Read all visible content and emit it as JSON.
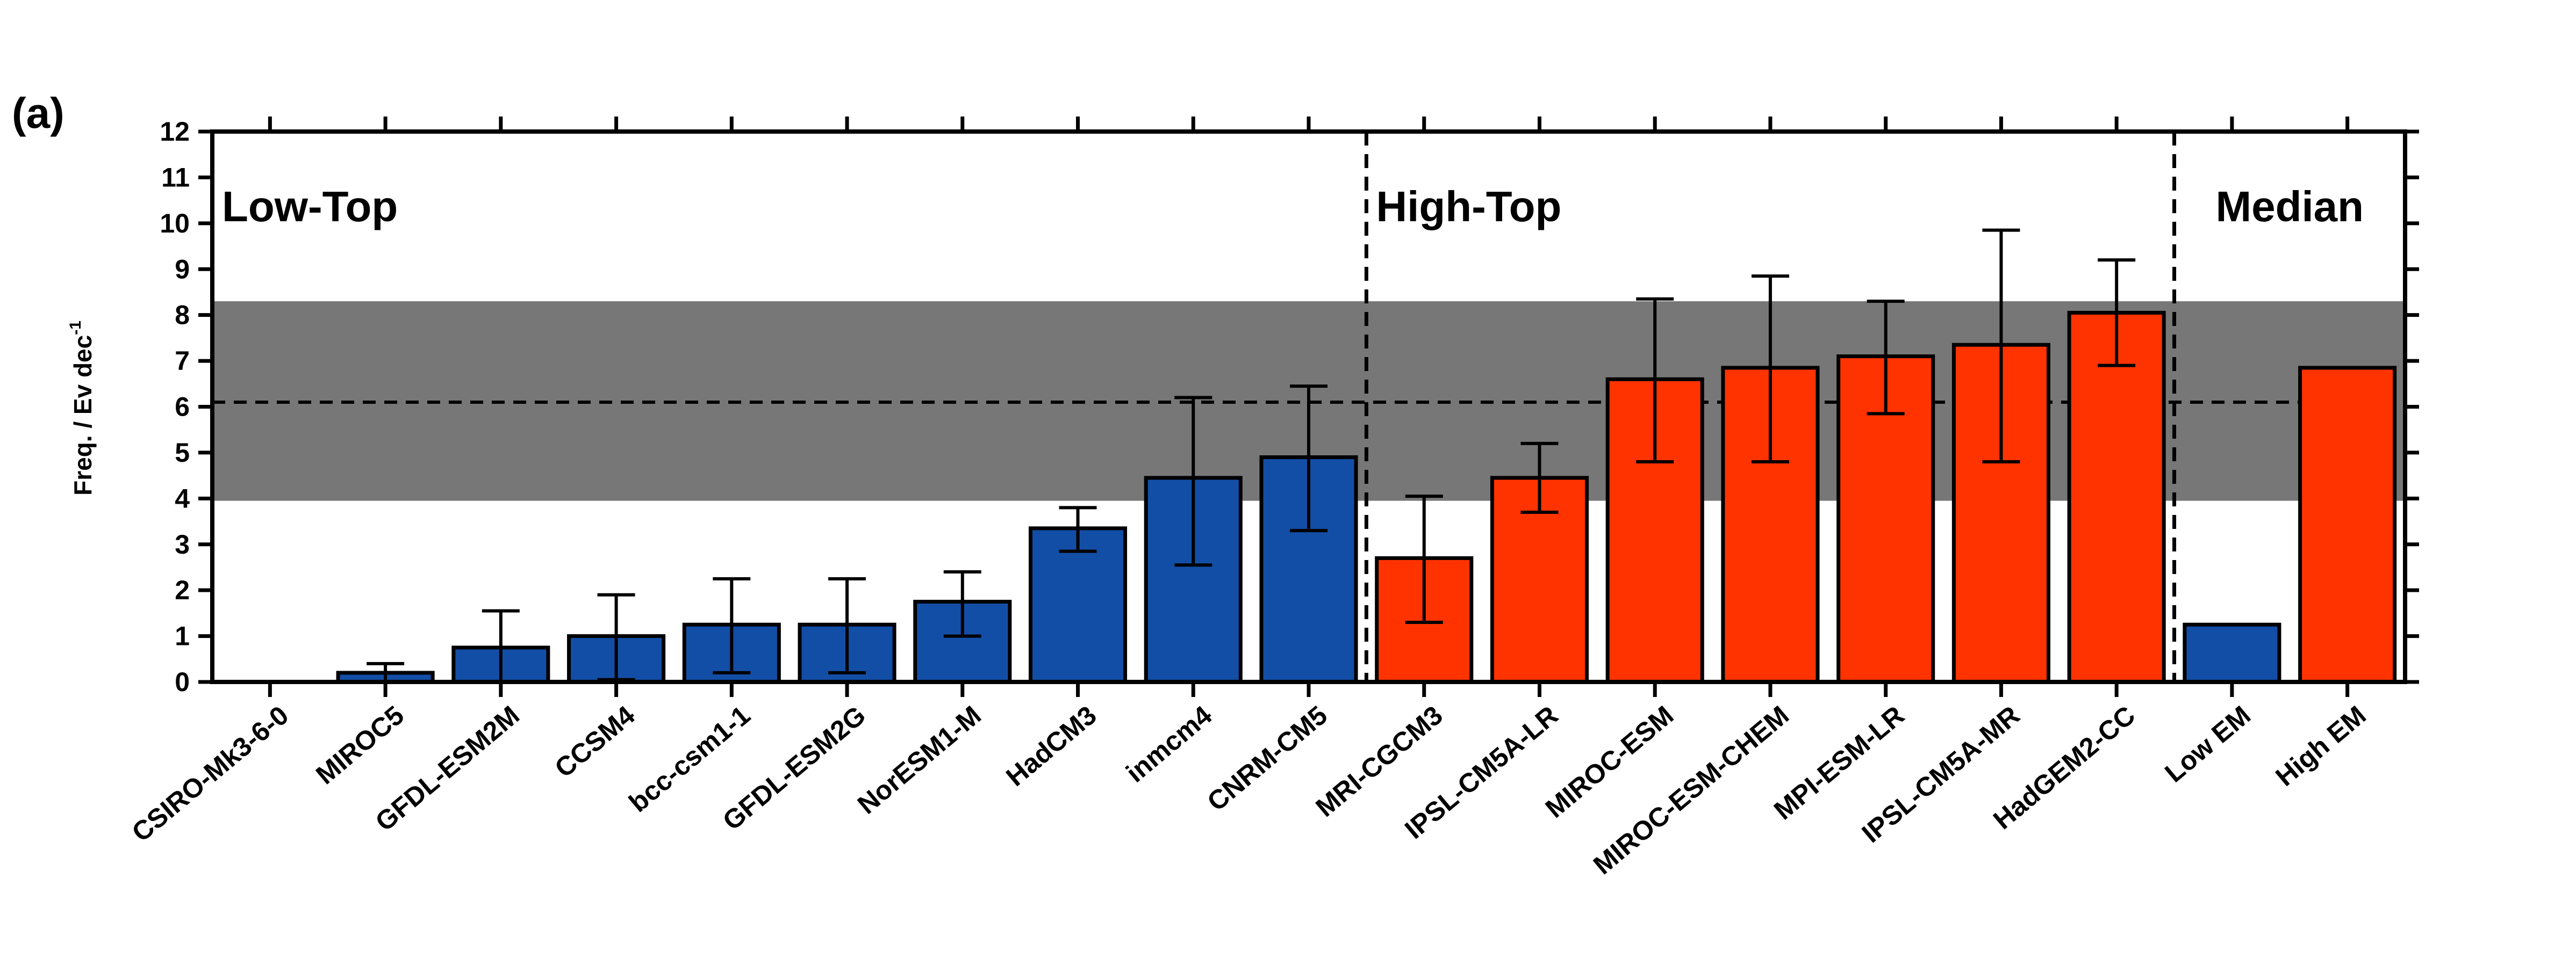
{
  "chart_data": {
    "type": "bar",
    "panel_label": "(a)",
    "ylabel": "Freq. / Ev dec",
    "ylabel_superscript": "-1",
    "ylim": [
      0,
      12
    ],
    "yticks": [
      0,
      1,
      2,
      3,
      4,
      5,
      6,
      7,
      8,
      9,
      10,
      11,
      12
    ],
    "reference": {
      "mean": 6.1,
      "band": [
        3.95,
        8.3
      ],
      "band_color": "#777777"
    },
    "groups": [
      {
        "label": "Low-Top",
        "start": 0
      },
      {
        "label": "High-Top",
        "start": 10
      },
      {
        "label": "Median",
        "start": 17
      }
    ],
    "colors": {
      "low": "#134ea6",
      "high": "#ff3300"
    },
    "categories": [
      "CSIRO-Mk3-6-0",
      "MIROC5",
      "GFDL-ESM2M",
      "CCSM4",
      "bcc-csm1-1",
      "GFDL-ESM2G",
      "NorESM1-M",
      "HadCM3",
      "inmcm4",
      "CNRM-CM5",
      "MRI-CGCM3",
      "IPSL-CM5A-LR",
      "MIROC-ESM",
      "MIROC-ESM-CHEM",
      "MPI-ESM-LR",
      "IPSL-CM5A-MR",
      "HadGEM2-CC",
      "Low EM",
      "High EM"
    ],
    "values": [
      0,
      0.2,
      0.75,
      1.0,
      1.25,
      1.25,
      1.75,
      3.35,
      4.45,
      4.9,
      2.7,
      4.45,
      6.6,
      6.85,
      7.1,
      7.35,
      8.05,
      1.25,
      6.85
    ],
    "err_low": [
      null,
      0.0,
      0.0,
      0.05,
      0.2,
      0.2,
      1.0,
      2.85,
      2.55,
      3.3,
      1.3,
      3.7,
      4.8,
      4.8,
      5.85,
      4.8,
      6.9,
      null,
      null
    ],
    "err_high": [
      null,
      0.4,
      1.55,
      1.9,
      2.25,
      2.25,
      2.4,
      3.8,
      6.2,
      6.45,
      4.05,
      5.2,
      8.35,
      8.85,
      8.3,
      9.85,
      9.2,
      null,
      null
    ],
    "bar_kind": [
      "low",
      "low",
      "low",
      "low",
      "low",
      "low",
      "low",
      "low",
      "low",
      "low",
      "high",
      "high",
      "high",
      "high",
      "high",
      "high",
      "high",
      "low",
      "high"
    ]
  }
}
